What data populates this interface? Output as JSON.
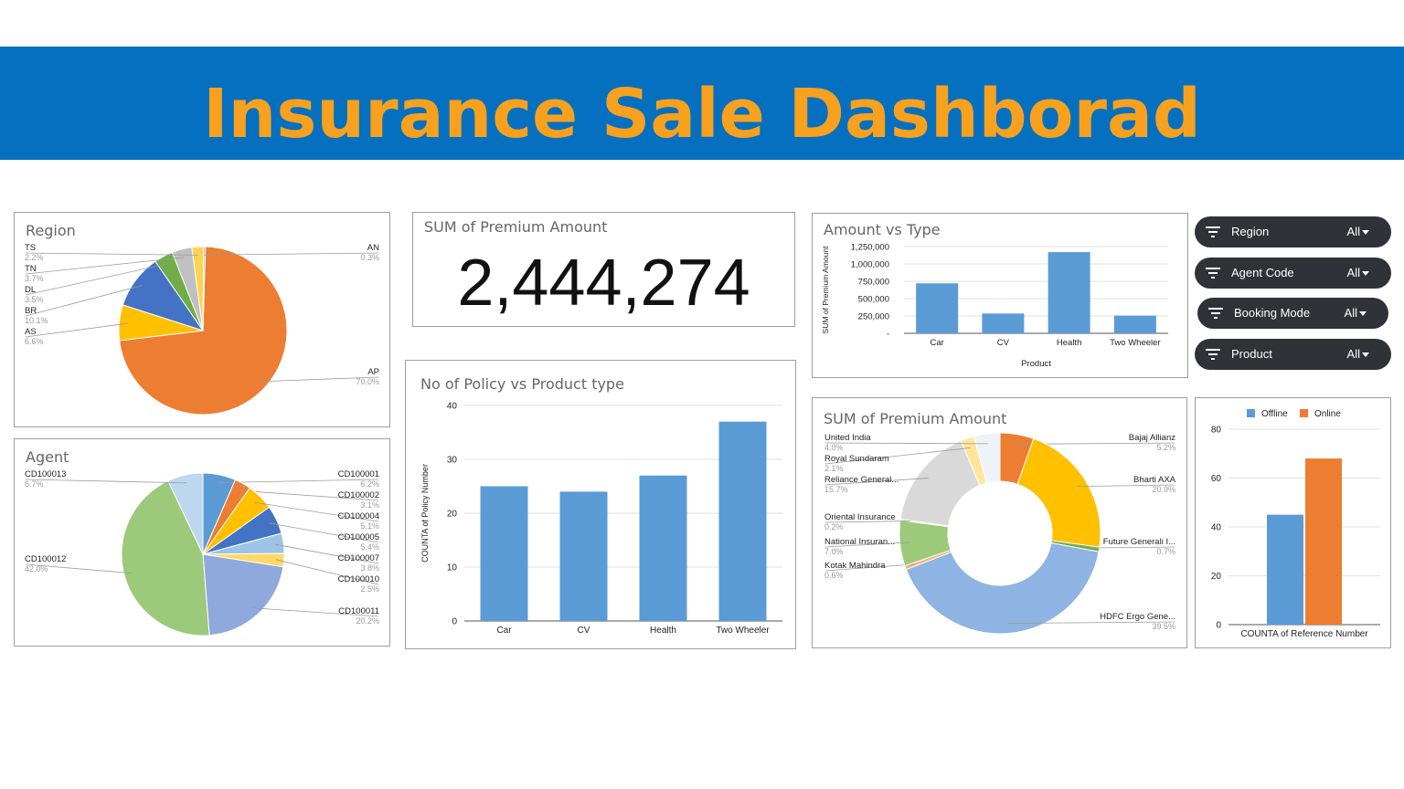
{
  "header": {
    "title": "Insurance Sale Dashborad"
  },
  "kpi": {
    "title": "SUM of Premium Amount",
    "value": "2,444,274"
  },
  "filters": [
    {
      "label": "Region",
      "value": "All"
    },
    {
      "label": "Agent Code",
      "value": "All"
    },
    {
      "label": "Booking Mode",
      "value": "All"
    },
    {
      "label": "Product",
      "value": "All"
    }
  ],
  "colors": {
    "blue": "#5b9bd5",
    "orange": "#ed7d31",
    "banner": "#0570c0",
    "title": "#f7a11e"
  },
  "chart_data": [
    {
      "id": "region",
      "type": "pie",
      "title": "Region",
      "slices": [
        {
          "label": "AP",
          "pct": "70.0%",
          "value": 70.0,
          "color": "#ed7d31"
        },
        {
          "label": "AS",
          "pct": "6.6%",
          "value": 6.6,
          "color": "#ffc000"
        },
        {
          "label": "BR",
          "pct": "10.1%",
          "value": 10.1,
          "color": "#4472c4"
        },
        {
          "label": "DL",
          "pct": "3.5%",
          "value": 3.5,
          "color": "#70ad47"
        },
        {
          "label": "TN",
          "pct": "3.7%",
          "value": 3.7,
          "color": "#c0c0c0"
        },
        {
          "label": "TS",
          "pct": "2.2%",
          "value": 2.2,
          "color": "#ffd34f"
        },
        {
          "label": "AN",
          "pct": "0.3%",
          "value": 0.3,
          "color": "#5b9bd5"
        }
      ]
    },
    {
      "id": "agent",
      "type": "pie",
      "title": "Agent",
      "slices": [
        {
          "label": "CD100001",
          "pct": "6.2%",
          "value": 6.2,
          "color": "#5b9bd5"
        },
        {
          "label": "CD100002",
          "pct": "3.1%",
          "value": 3.1,
          "color": "#ed7d31"
        },
        {
          "label": "CD100004",
          "pct": "5.1%",
          "value": 5.1,
          "color": "#ffc000"
        },
        {
          "label": "CD100005",
          "pct": "5.4%",
          "value": 5.4,
          "color": "#4472c4"
        },
        {
          "label": "CD100007",
          "pct": "3.8%",
          "value": 3.8,
          "color": "#9dc3e6"
        },
        {
          "label": "CD100010",
          "pct": "2.5%",
          "value": 2.5,
          "color": "#ffd966"
        },
        {
          "label": "CD100011",
          "pct": "20.2%",
          "value": 20.2,
          "color": "#8fa9dc"
        },
        {
          "label": "CD100012",
          "pct": "42.0%",
          "value": 42.0,
          "color": "#9dc97a"
        },
        {
          "label": "CD100013",
          "pct": "6.7%",
          "value": 6.7,
          "color": "#bdd7ee"
        }
      ]
    },
    {
      "id": "policy",
      "type": "bar",
      "title": "No of Policy vs Product type",
      "categories": [
        "Car",
        "CV",
        "Health",
        "Two Wheeler"
      ],
      "values": [
        25,
        24,
        27,
        37
      ],
      "ylabel": "COUNTA of Policy Number",
      "ylim": [
        0,
        40
      ],
      "yticks": [
        "0",
        "10",
        "20",
        "30",
        "40"
      ]
    },
    {
      "id": "amount",
      "type": "bar",
      "title": "Amount vs Type",
      "categories": [
        "Car",
        "CV",
        "Health",
        "Two Wheeler"
      ],
      "values": [
        720000,
        285000,
        1170000,
        255000
      ],
      "xlabel": "Product",
      "ylabel": "SUM of Premium Amount",
      "ylim": [
        0,
        1250000
      ],
      "yticks": [
        "-",
        "250,000",
        "500,000",
        "750,000",
        "1,000,000",
        "1,250,000"
      ]
    },
    {
      "id": "insurer",
      "type": "pie",
      "title": "SUM of Premium Amount",
      "slices": [
        {
          "label": "Bajaj Allianz",
          "pct": "5.2%",
          "value": 5.2,
          "color": "#ed7d31"
        },
        {
          "label": "Bharti AXA",
          "pct": "20.9%",
          "value": 20.9,
          "color": "#ffc000"
        },
        {
          "label": "Future Generali I...",
          "pct": "0.7%",
          "value": 0.7,
          "color": "#70ad47"
        },
        {
          "label": "HDFC Ergo Gene...",
          "pct": "39.5%",
          "value": 39.5,
          "color": "#8db4e2"
        },
        {
          "label": "Kotak Mahindra",
          "pct": "0.6%",
          "value": 0.6,
          "color": "#f4b183"
        },
        {
          "label": "National Insuran...",
          "pct": "7.0%",
          "value": 7.0,
          "color": "#9dc97a"
        },
        {
          "label": "Oriental Insurance",
          "pct": "0.2%",
          "value": 0.2,
          "color": "#5b9bd5"
        },
        {
          "label": "Reliance General...",
          "pct": "15.7%",
          "value": 15.7,
          "color": "#d9d9d9"
        },
        {
          "label": "Royal Sundaram",
          "pct": "2.1%",
          "value": 2.1,
          "color": "#ffe699"
        },
        {
          "label": "United India",
          "pct": "4.0%",
          "value": 4.0,
          "color": "#eef3fa"
        }
      ]
    },
    {
      "id": "mode",
      "type": "bar",
      "title": "",
      "categories": [
        "COUNTA of Reference Number"
      ],
      "series": [
        {
          "name": "Offline",
          "values": [
            45
          ],
          "color": "#5b9bd5"
        },
        {
          "name": "Online",
          "values": [
            68
          ],
          "color": "#ed7d31"
        }
      ],
      "ylim": [
        0,
        80
      ],
      "yticks": [
        "0",
        "20",
        "40",
        "60",
        "80"
      ],
      "legend": "top"
    }
  ]
}
